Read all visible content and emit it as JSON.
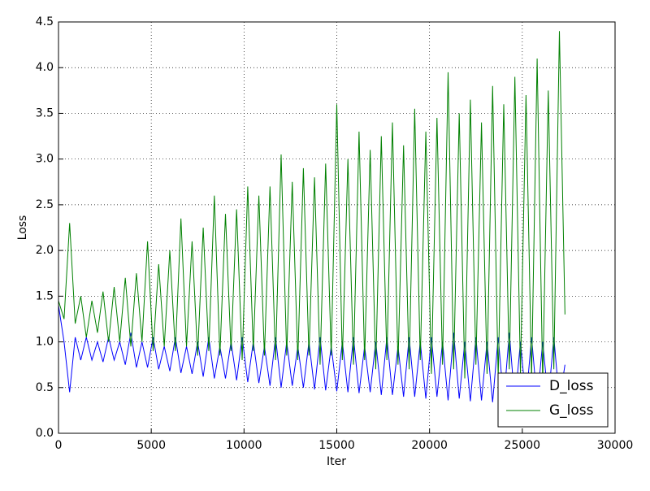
{
  "chart_data": {
    "type": "line",
    "xlabel": "Iter",
    "ylabel": "Loss",
    "x": [
      0,
      300,
      600,
      900,
      1200,
      1500,
      1800,
      2100,
      2400,
      2700,
      3000,
      3300,
      3600,
      3900,
      4200,
      4500,
      4800,
      5100,
      5400,
      5700,
      6000,
      6300,
      6600,
      6900,
      7200,
      7500,
      7800,
      8100,
      8400,
      8700,
      9000,
      9300,
      9600,
      9900,
      10200,
      10500,
      10800,
      11100,
      11400,
      11700,
      12000,
      12300,
      12600,
      12900,
      13200,
      13500,
      13800,
      14100,
      14400,
      14700,
      15000,
      15300,
      15600,
      15900,
      16200,
      16500,
      16800,
      17100,
      17400,
      17700,
      18000,
      18300,
      18600,
      18900,
      19200,
      19500,
      19800,
      20100,
      20400,
      20700,
      21000,
      21300,
      21600,
      21900,
      22200,
      22500,
      22800,
      23100,
      23400,
      23700,
      24000,
      24300,
      24600,
      24900,
      25200,
      25500,
      25800,
      26100,
      26400,
      26700,
      27000,
      27300
    ],
    "series": [
      {
        "name": "D_loss",
        "color": "#0000ff",
        "values": [
          1.4,
          1.0,
          0.45,
          1.05,
          0.8,
          1.05,
          0.8,
          1.0,
          0.78,
          1.05,
          0.8,
          1.0,
          0.75,
          1.1,
          0.72,
          1.0,
          0.72,
          1.05,
          0.7,
          0.95,
          0.68,
          1.05,
          0.66,
          0.95,
          0.65,
          1.0,
          0.62,
          1.05,
          0.6,
          0.95,
          0.6,
          1.0,
          0.58,
          1.05,
          0.56,
          1.0,
          0.55,
          0.95,
          0.52,
          1.05,
          0.5,
          1.0,
          0.52,
          0.95,
          0.5,
          1.0,
          0.48,
          1.05,
          0.47,
          0.95,
          0.46,
          1.0,
          0.45,
          1.05,
          0.44,
          0.95,
          0.45,
          1.0,
          0.42,
          1.05,
          0.42,
          0.95,
          0.4,
          1.05,
          0.4,
          1.0,
          0.38,
          1.05,
          0.4,
          1.0,
          0.36,
          1.1,
          0.38,
          1.0,
          0.35,
          1.05,
          0.36,
          1.0,
          0.34,
          1.05,
          0.35,
          1.1,
          0.33,
          1.0,
          0.35,
          1.05,
          0.34,
          1.0,
          0.36,
          1.05,
          0.35,
          0.75
        ]
      },
      {
        "name": "G_loss",
        "color": "#008000",
        "values": [
          1.45,
          1.25,
          2.3,
          1.2,
          1.5,
          1.05,
          1.45,
          1.1,
          1.55,
          1.0,
          1.6,
          1.0,
          1.7,
          0.95,
          1.75,
          1.0,
          2.1,
          0.9,
          1.85,
          0.95,
          2.0,
          0.9,
          2.35,
          0.95,
          2.1,
          0.85,
          2.25,
          0.9,
          2.6,
          0.85,
          2.4,
          0.9,
          2.45,
          0.8,
          2.7,
          0.9,
          2.6,
          0.85,
          2.7,
          0.8,
          3.05,
          0.85,
          2.75,
          0.8,
          2.9,
          0.85,
          2.8,
          0.75,
          2.95,
          0.85,
          3.6,
          0.8,
          3.0,
          0.75,
          3.3,
          0.8,
          3.1,
          0.7,
          3.25,
          0.8,
          3.4,
          0.75,
          3.15,
          0.7,
          3.55,
          0.8,
          3.3,
          0.65,
          3.45,
          0.75,
          3.95,
          0.7,
          3.5,
          0.6,
          3.65,
          0.75,
          3.4,
          0.65,
          3.8,
          0.6,
          3.6,
          0.7,
          3.9,
          0.65,
          3.7,
          0.6,
          4.1,
          0.55,
          3.75,
          0.7,
          4.4,
          1.3
        ]
      }
    ],
    "xlim": [
      0,
      30000
    ],
    "xticks": [
      0,
      5000,
      10000,
      15000,
      20000,
      25000,
      30000
    ],
    "ylim": [
      0,
      4.5
    ],
    "yticks": [
      {
        "value": 0,
        "label": "0.0"
      },
      0.5,
      {
        "value": 1,
        "label": "1.0"
      },
      1.5,
      {
        "value": 2,
        "label": "2.0"
      },
      2.5,
      {
        "value": 3,
        "label": "3.0"
      },
      3.5,
      {
        "value": 4,
        "label": "4.0"
      },
      4.5
    ],
    "grid": true,
    "legend": "lower right"
  }
}
